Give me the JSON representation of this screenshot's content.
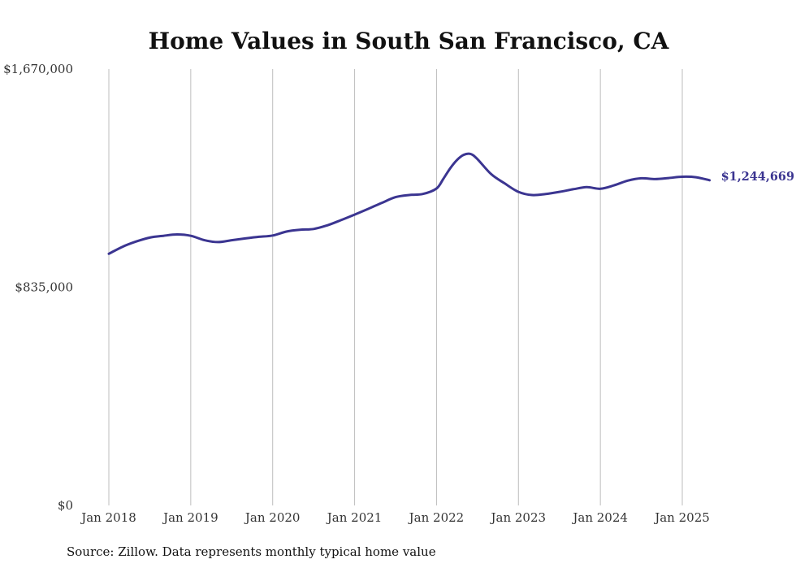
{
  "chart_data": {
    "type": "line",
    "title": "Home Values in South San Francisco, CA",
    "xlabel": "",
    "ylabel": "",
    "ylim": [
      0,
      1670000
    ],
    "yticks": [
      {
        "value": 0,
        "label": "$0"
      },
      {
        "value": 835000,
        "label": "$835,000"
      },
      {
        "value": 1670000,
        "label": "$1,670,000"
      }
    ],
    "xticks": [
      {
        "value": "2018-01",
        "label": "Jan 2018"
      },
      {
        "value": "2019-01",
        "label": "Jan 2019"
      },
      {
        "value": "2020-01",
        "label": "Jan 2020"
      },
      {
        "value": "2021-01",
        "label": "Jan 2021"
      },
      {
        "value": "2022-01",
        "label": "Jan 2022"
      },
      {
        "value": "2023-01",
        "label": "Jan 2023"
      },
      {
        "value": "2024-01",
        "label": "Jan 2024"
      },
      {
        "value": "2025-01",
        "label": "Jan 2025"
      }
    ],
    "xlim": [
      "2018-01",
      "2025-05"
    ],
    "grid": {
      "vertical": true,
      "horizontal": false
    },
    "series_color": "#3b3591",
    "end_label": "$1,244,669",
    "x": [
      "2018-01",
      "2018-03",
      "2018-05",
      "2018-07",
      "2018-09",
      "2018-11",
      "2019-01",
      "2019-03",
      "2019-05",
      "2019-07",
      "2019-09",
      "2019-11",
      "2020-01",
      "2020-03",
      "2020-05",
      "2020-07",
      "2020-09",
      "2020-11",
      "2021-01",
      "2021-03",
      "2021-05",
      "2021-07",
      "2021-09",
      "2021-11",
      "2022-01",
      "2022-02",
      "2022-03",
      "2022-04",
      "2022-05",
      "2022-06",
      "2022-07",
      "2022-09",
      "2022-11",
      "2023-01",
      "2023-03",
      "2023-05",
      "2023-07",
      "2023-09",
      "2023-11",
      "2024-01",
      "2024-03",
      "2024-05",
      "2024-07",
      "2024-09",
      "2024-11",
      "2025-01",
      "2025-03",
      "2025-05"
    ],
    "values": [
      963000,
      990000,
      1010000,
      1025000,
      1032000,
      1037000,
      1032000,
      1015000,
      1008000,
      1015000,
      1022000,
      1028000,
      1033000,
      1048000,
      1055000,
      1058000,
      1072000,
      1092000,
      1113000,
      1135000,
      1158000,
      1180000,
      1188000,
      1192000,
      1213000,
      1250000,
      1290000,
      1322000,
      1342000,
      1345000,
      1325000,
      1268000,
      1232000,
      1200000,
      1188000,
      1192000,
      1200000,
      1210000,
      1218000,
      1212000,
      1225000,
      1243000,
      1252000,
      1249000,
      1253000,
      1258000,
      1256000,
      1244669
    ]
  },
  "source_note": "Source: Zillow. Data represents monthly typical home value"
}
